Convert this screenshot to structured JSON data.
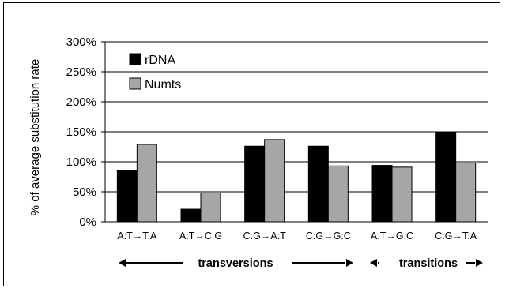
{
  "chart_data": {
    "type": "bar",
    "ylabel": "% of average substitution rate",
    "ylim": [
      0,
      300
    ],
    "yticks": [
      0,
      50,
      100,
      150,
      200,
      250,
      300
    ],
    "ytick_labels": [
      "0%",
      "50%",
      "100%",
      "150%",
      "200%",
      "250%",
      "300%"
    ],
    "categories": [
      "A:T→T:A",
      "A:T→C:G",
      "C:G→A:T",
      "C:G→G:C",
      "A:T→G:C",
      "C:G→T:A"
    ],
    "series": [
      {
        "name": "rDNA",
        "color": "#000000",
        "values": [
          86,
          21,
          126,
          126,
          94,
          150
        ]
      },
      {
        "name": "Numts",
        "color": "#a6a6a6",
        "values": [
          129,
          48,
          137,
          93,
          91,
          98
        ]
      }
    ],
    "groups": [
      {
        "label": "transversions",
        "categories": [
          0,
          1,
          2,
          3
        ]
      },
      {
        "label": "transitions",
        "categories": [
          4,
          5
        ]
      }
    ],
    "legend_position": "top-left",
    "grid": true
  }
}
